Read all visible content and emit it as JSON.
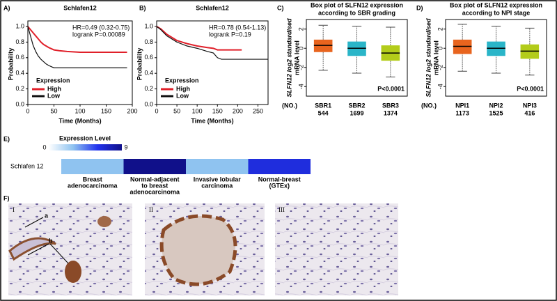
{
  "chart_data": [
    {
      "type": "line",
      "label": "A)",
      "title": "Schlafen12",
      "xlabel": "Time (Months)",
      "ylabel": "Probability",
      "xlim": [
        0,
        200
      ],
      "ylim": [
        0,
        1
      ],
      "xticks": [
        0,
        50,
        100,
        150,
        200
      ],
      "yticks": [
        {
          "value": 0,
          "label": "0.0"
        },
        0.2,
        0.4,
        0.6,
        0.8,
        {
          "value": 1,
          "label": "1.0"
        }
      ],
      "annotations": [
        "HR=0.49 (0.32-0.75)",
        "logrank P=0.00089"
      ],
      "legend_title": "Expression",
      "series": [
        {
          "name": "High",
          "color": "#e0202a",
          "x": [
            0,
            5,
            10,
            15,
            20,
            25,
            30,
            40,
            50,
            60,
            75,
            100,
            150,
            190
          ],
          "values": [
            1,
            0.96,
            0.92,
            0.88,
            0.84,
            0.8,
            0.77,
            0.73,
            0.7,
            0.69,
            0.68,
            0.67,
            0.67,
            0.67
          ]
        },
        {
          "name": "Low",
          "color": "#111111",
          "x": [
            0,
            5,
            10,
            15,
            20,
            25,
            30,
            35,
            40,
            50,
            100,
            150,
            190
          ],
          "values": [
            1,
            0.88,
            0.76,
            0.68,
            0.62,
            0.58,
            0.55,
            0.52,
            0.5,
            0.47,
            0.47,
            0.47,
            0.47
          ]
        }
      ]
    },
    {
      "type": "line",
      "label": "B)",
      "title": "Schlafen12",
      "xlabel": "Time (Months)",
      "ylabel": "Probability",
      "xlim": [
        0,
        275
      ],
      "ylim": [
        0,
        1
      ],
      "xticks": [
        0,
        50,
        100,
        150,
        200,
        250
      ],
      "yticks": [
        {
          "value": 0,
          "label": "0.0"
        },
        0.2,
        0.4,
        0.6,
        0.8,
        {
          "value": 1,
          "label": "1.0"
        }
      ],
      "annotations": [
        "HR=0.78 (0.54-1.13)",
        "logrank P=0.19"
      ],
      "legend_title": "Expression",
      "series": [
        {
          "name": "High",
          "color": "#e0202a",
          "x": [
            0,
            10,
            25,
            50,
            75,
            100,
            125,
            140,
            150,
            210
          ],
          "values": [
            1,
            0.97,
            0.9,
            0.82,
            0.78,
            0.75,
            0.73,
            0.72,
            0.7,
            0.7
          ]
        },
        {
          "name": "Low",
          "color": "#111111",
          "x": [
            0,
            10,
            25,
            50,
            75,
            100,
            125,
            140,
            150,
            160,
            275
          ],
          "values": [
            1,
            0.96,
            0.88,
            0.8,
            0.75,
            0.72,
            0.68,
            0.66,
            0.6,
            0.58,
            0.58
          ]
        }
      ]
    },
    {
      "type": "box",
      "label": "C)",
      "title": [
        "Box plot of SLFN12 expression",
        "according to SBR grading"
      ],
      "ylabel": [
        "SLFN12 log2 standardised",
        "mRNA level"
      ],
      "ylim": [
        -5,
        3
      ],
      "yticks": [
        -4,
        -2,
        0,
        2
      ],
      "count_label": "(NO.)",
      "categories": [
        "SBR1",
        "SBR2",
        "SBR3"
      ],
      "counts": [
        "544",
        "1699",
        "1374"
      ],
      "colors": [
        "#e8641e",
        "#2ab5c8",
        "#b3cc1a"
      ],
      "annotations": [
        "P<0.0001"
      ],
      "boxes": [
        {
          "whislo": -2.3,
          "q1": -0.4,
          "median": 0.3,
          "q3": 0.9,
          "whishi": 2.4
        },
        {
          "whislo": -2.6,
          "q1": -0.8,
          "median": 0.0,
          "q3": 0.7,
          "whishi": 2.3
        },
        {
          "whislo": -3.0,
          "q1": -1.3,
          "median": -0.5,
          "q3": 0.3,
          "whishi": 2.2
        }
      ]
    },
    {
      "type": "box",
      "label": "D)",
      "title": [
        "Box plot of SLFN12 expression",
        "according to NPI stage"
      ],
      "ylabel": [
        "SLFN12 log2 standardised",
        "mRNA level"
      ],
      "ylim": [
        -5,
        3
      ],
      "yticks": [
        -4,
        -2,
        0,
        2
      ],
      "count_label": "(NO.)",
      "categories": [
        "NPI1",
        "NPI2",
        "NPI3"
      ],
      "counts": [
        "1173",
        "1525",
        "416"
      ],
      "colors": [
        "#e8641e",
        "#2ab5c8",
        "#b3cc1a"
      ],
      "annotations": [
        "P<0.0001"
      ],
      "boxes": [
        {
          "whislo": -2.4,
          "q1": -0.6,
          "median": 0.2,
          "q3": 0.9,
          "whishi": 2.5
        },
        {
          "whislo": -2.6,
          "q1": -0.8,
          "median": 0.0,
          "q3": 0.7,
          "whishi": 2.3
        },
        {
          "whislo": -2.8,
          "q1": -1.1,
          "median": -0.3,
          "q3": 0.4,
          "whishi": 2.1
        }
      ]
    },
    {
      "type": "heatmap",
      "label": "E)",
      "legend_title": "Expression Level",
      "clim": [
        0,
        9
      ],
      "cbar_ticks": [
        0,
        9
      ],
      "colormap": [
        "#ffffff",
        "#8fc3f0",
        "#2233ee",
        "#10108a"
      ],
      "rows": [
        "Schlafen 12"
      ],
      "columns": [
        [
          "Breast",
          "adenocarcinoma"
        ],
        [
          "Normal-adjacent",
          "to breast",
          "adenocarcinoma"
        ],
        [
          "Invasive lobular",
          "carcinoma"
        ],
        [
          "Normal-breast",
          "(GTEx)"
        ]
      ],
      "values": [
        [
          3,
          9,
          3,
          6.5
        ]
      ]
    }
  ],
  "figure_images": {
    "label": "F)",
    "panels": [
      {
        "label": "I",
        "annotations": [
          "a",
          "b"
        ]
      },
      {
        "label": "II"
      },
      {
        "label": "III"
      }
    ]
  }
}
